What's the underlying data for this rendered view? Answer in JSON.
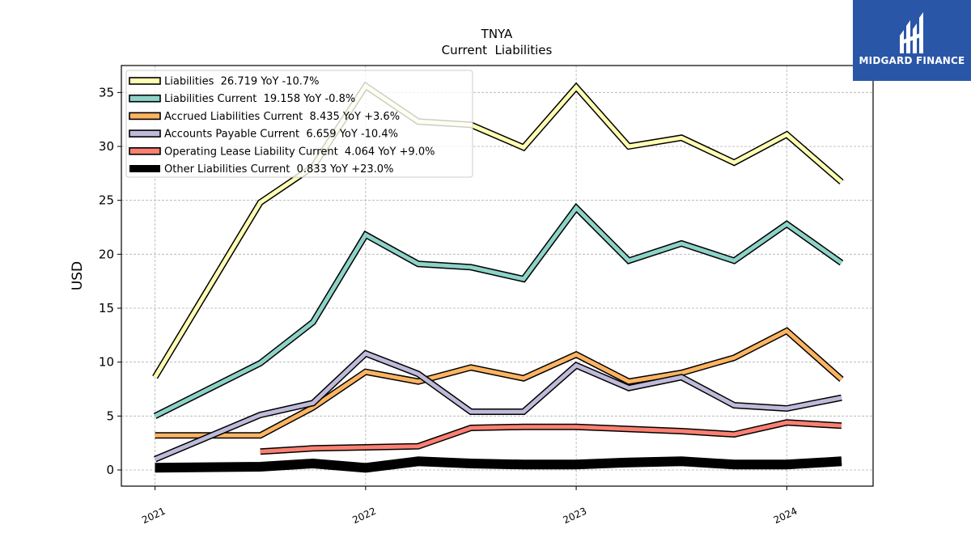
{
  "chart_data": {
    "type": "line",
    "title": "TNYA",
    "subtitle": "Current  Liabilities",
    "ylabel": "USD",
    "xlabel": "",
    "ylim": [
      -1.5,
      37.5
    ],
    "xlim": [
      2020.84,
      2024.41
    ],
    "yticks": [
      0,
      5,
      10,
      15,
      20,
      25,
      30,
      35
    ],
    "xticks": [
      {
        "value": 2021.0,
        "label": "2021"
      },
      {
        "value": 2022.0,
        "label": "2022"
      },
      {
        "value": 2023.0,
        "label": "2023"
      },
      {
        "value": 2024.0,
        "label": "2024"
      }
    ],
    "grid": true,
    "legend_position": "top-left",
    "series": [
      {
        "name": "Liabilities  26.719 YoY -10.7%",
        "color": "#ffffb3",
        "line_width": 5,
        "points": [
          [
            2021.0,
            8.6
          ],
          [
            2021.5,
            24.8
          ],
          [
            2021.75,
            28.1
          ],
          [
            2022.0,
            35.6
          ],
          [
            2022.25,
            32.3
          ],
          [
            2022.5,
            32.0
          ],
          [
            2022.75,
            29.9
          ],
          [
            2023.0,
            35.5
          ],
          [
            2023.25,
            30.0
          ],
          [
            2023.5,
            30.8
          ],
          [
            2023.75,
            28.5
          ],
          [
            2024.0,
            31.1
          ],
          [
            2024.26,
            26.7
          ]
        ]
      },
      {
        "name": "Liabilities Current  19.158 YoY -0.8%",
        "color": "#8dd3c7",
        "line_width": 5,
        "points": [
          [
            2021.0,
            5.0
          ],
          [
            2021.5,
            9.9
          ],
          [
            2021.75,
            13.7
          ],
          [
            2022.0,
            21.8
          ],
          [
            2022.25,
            19.1
          ],
          [
            2022.5,
            18.8
          ],
          [
            2022.75,
            17.7
          ],
          [
            2023.0,
            24.3
          ],
          [
            2023.25,
            19.4
          ],
          [
            2023.5,
            21.0
          ],
          [
            2023.75,
            19.4
          ],
          [
            2024.0,
            22.8
          ],
          [
            2024.26,
            19.2
          ]
        ]
      },
      {
        "name": "Accrued Liabilities Current  8.435 YoY +3.6%",
        "color": "#fdb462",
        "line_width": 5,
        "points": [
          [
            2021.0,
            3.2
          ],
          [
            2021.5,
            3.2
          ],
          [
            2021.75,
            5.8
          ],
          [
            2022.0,
            9.1
          ],
          [
            2022.25,
            8.2
          ],
          [
            2022.5,
            9.5
          ],
          [
            2022.75,
            8.5
          ],
          [
            2023.0,
            10.7
          ],
          [
            2023.25,
            8.2
          ],
          [
            2023.5,
            9.0
          ],
          [
            2023.75,
            10.4
          ],
          [
            2024.0,
            12.9
          ],
          [
            2024.26,
            8.4
          ]
        ]
      },
      {
        "name": "Accounts Payable Current  6.659 YoY -10.4%",
        "color": "#bebada",
        "line_width": 5,
        "points": [
          [
            2021.0,
            1.0
          ],
          [
            2021.5,
            5.1
          ],
          [
            2021.75,
            6.2
          ],
          [
            2022.0,
            10.8
          ],
          [
            2022.25,
            8.9
          ],
          [
            2022.5,
            5.4
          ],
          [
            2022.75,
            5.4
          ],
          [
            2023.0,
            9.7
          ],
          [
            2023.25,
            7.6
          ],
          [
            2023.5,
            8.6
          ],
          [
            2023.75,
            6.0
          ],
          [
            2024.0,
            5.7
          ],
          [
            2024.26,
            6.7
          ]
        ]
      },
      {
        "name": "Operating Lease Liability Current  4.064 YoY +9.0%",
        "color": "#fb8072",
        "line_width": 5,
        "points": [
          [
            2021.5,
            1.7
          ],
          [
            2021.75,
            2.0
          ],
          [
            2022.0,
            2.1
          ],
          [
            2022.25,
            2.2
          ],
          [
            2022.5,
            3.9
          ],
          [
            2022.75,
            4.0
          ],
          [
            2023.0,
            4.0
          ],
          [
            2023.5,
            3.6
          ],
          [
            2023.75,
            3.3
          ],
          [
            2024.0,
            4.4
          ],
          [
            2024.26,
            4.1
          ]
        ]
      },
      {
        "name": "Other Liabilities Current  0.833 YoY +23.0%",
        "color": "#000000",
        "line_width": 9,
        "points": [
          [
            2021.0,
            0.2
          ],
          [
            2021.5,
            0.3
          ],
          [
            2021.75,
            0.6
          ],
          [
            2022.0,
            0.2
          ],
          [
            2022.25,
            0.8
          ],
          [
            2022.5,
            0.6
          ],
          [
            2022.75,
            0.5
          ],
          [
            2023.0,
            0.5
          ],
          [
            2023.25,
            0.7
          ],
          [
            2023.5,
            0.8
          ],
          [
            2023.75,
            0.5
          ],
          [
            2024.0,
            0.5
          ],
          [
            2024.26,
            0.8
          ]
        ]
      }
    ]
  },
  "logo": {
    "text": "MIDGARD FINANCE",
    "background": "#2a56a8"
  }
}
